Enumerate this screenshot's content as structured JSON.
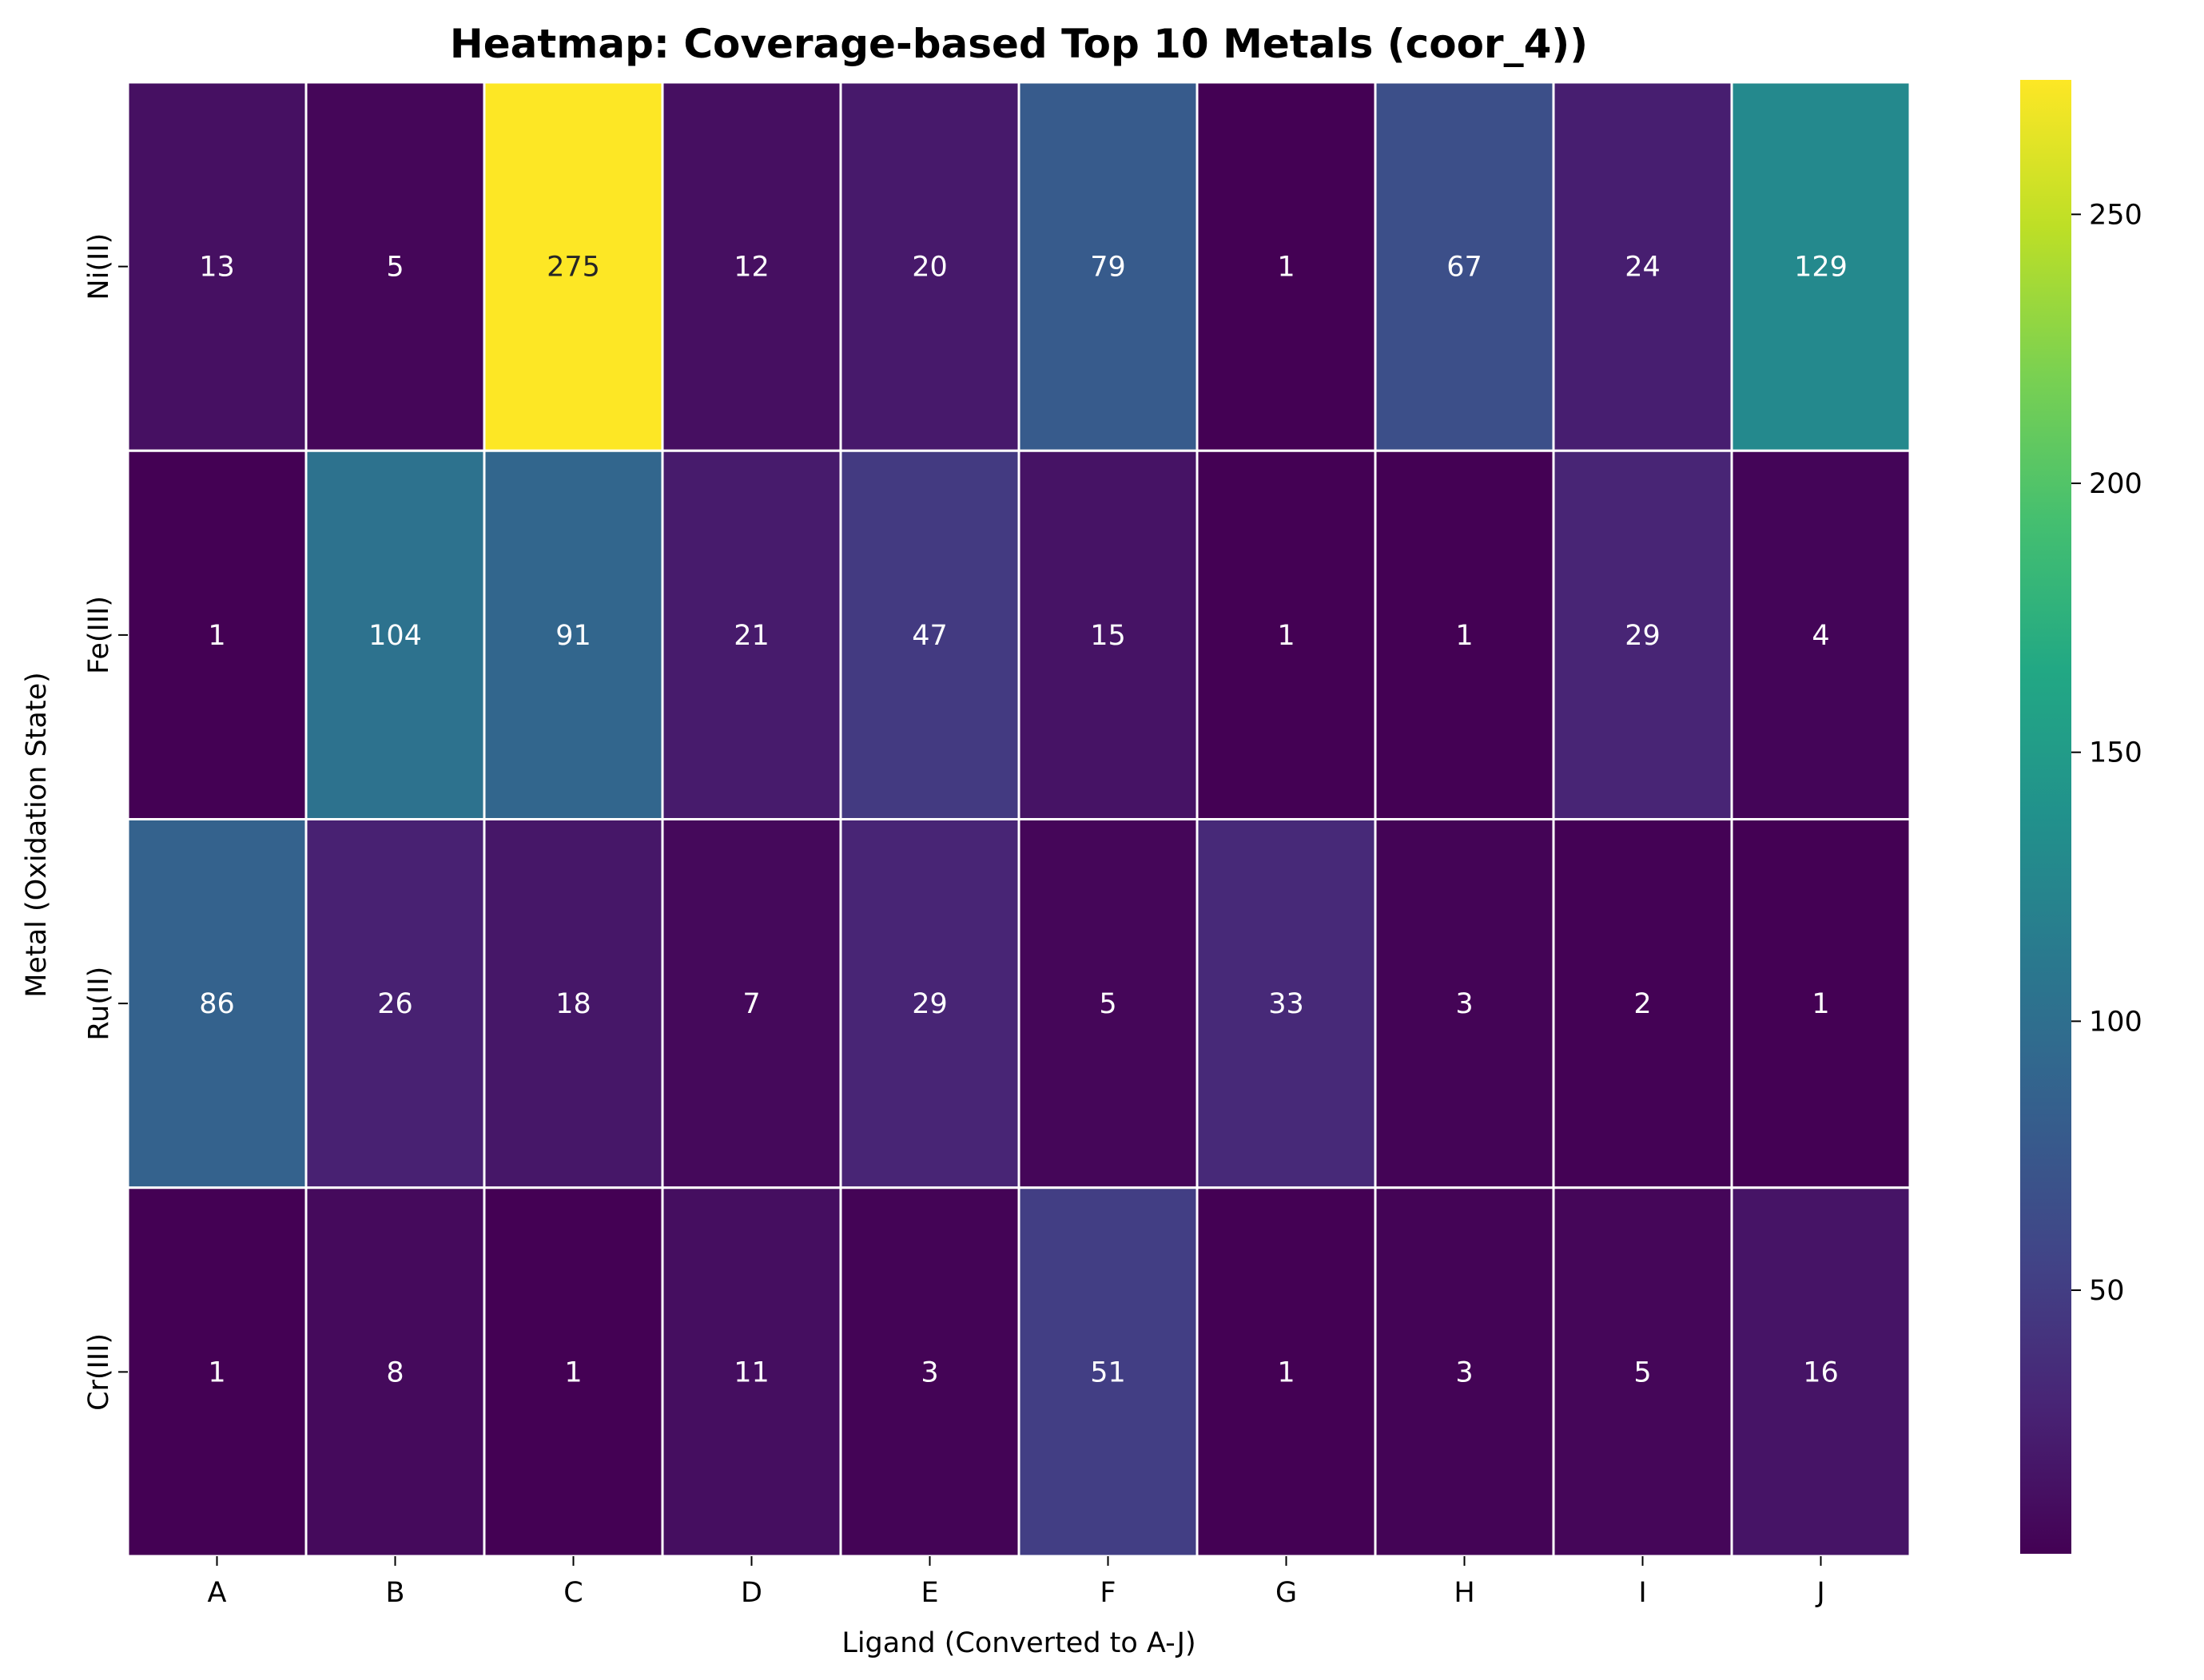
{
  "chart_data": {
    "type": "heatmap",
    "title": "Heatmap: Coverage-based Top 10 Metals (coor_4))",
    "xlabel": "Ligand (Converted to A-J)",
    "ylabel": "Metal (Oxidation State)",
    "x_categories": [
      "A",
      "B",
      "C",
      "D",
      "E",
      "F",
      "G",
      "H",
      "I",
      "J"
    ],
    "y_categories": [
      "Ni(II)",
      "Fe(III)",
      "Ru(II)",
      "Cr(III)"
    ],
    "values": [
      [
        13,
        5,
        275,
        12,
        20,
        79,
        1,
        67,
        24,
        129
      ],
      [
        1,
        104,
        91,
        21,
        47,
        15,
        1,
        1,
        29,
        4
      ],
      [
        86,
        26,
        18,
        7,
        29,
        5,
        33,
        3,
        2,
        1
      ],
      [
        1,
        8,
        1,
        11,
        3,
        51,
        1,
        3,
        5,
        16
      ]
    ],
    "colormap": "viridis",
    "color_range": [
      1,
      275
    ],
    "colorbar_ticks": [
      50,
      100,
      150,
      200,
      250
    ],
    "annotated": true,
    "grid": false
  }
}
